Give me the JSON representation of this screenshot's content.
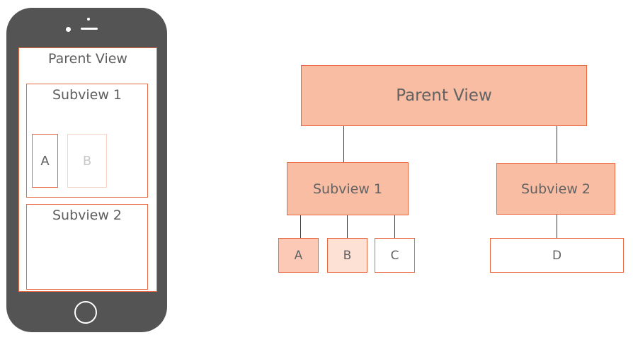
{
  "phone": {
    "screen": {
      "title": "Parent View",
      "subview1": {
        "title": "Subview 1",
        "box_a": "A",
        "box_b": "B"
      },
      "subview2": {
        "title": "Subview 2"
      }
    }
  },
  "tree": {
    "parent": "Parent View",
    "subview1": "Subview 1",
    "subview2": "Subview 2",
    "leaf_a": "A",
    "leaf_b": "B",
    "leaf_c": "C",
    "leaf_d": "D"
  },
  "colors": {
    "accent_border": "#e8693f",
    "node_fill": "#f9bda4",
    "node_fill_light": "#fde1d5",
    "phone_body": "#545454"
  }
}
